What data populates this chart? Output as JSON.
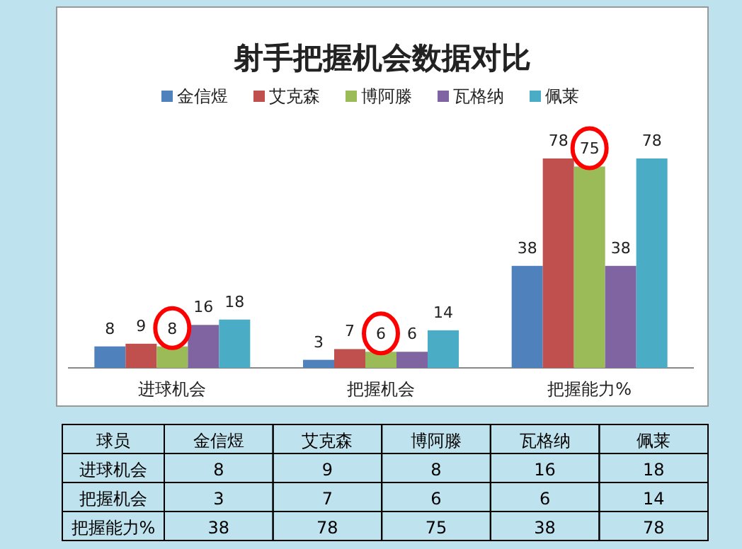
{
  "chart_data": [
    {
      "type": "bar",
      "title": "射手把握机会数据对比",
      "categories": [
        "进球机会",
        "把握机会",
        "把握能力%"
      ],
      "series": [
        {
          "name": "金信煜",
          "color": "#4f81bd",
          "values": [
            8,
            3,
            38
          ]
        },
        {
          "name": "艾克森",
          "color": "#c0504d",
          "values": [
            9,
            7,
            78
          ]
        },
        {
          "name": "博阿滕",
          "color": "#9bbb59",
          "values": [
            8,
            6,
            75
          ]
        },
        {
          "name": "瓦格纳",
          "color": "#8064a2",
          "values": [
            16,
            6,
            38
          ]
        },
        {
          "name": "佩莱",
          "color": "#4bacc6",
          "values": [
            18,
            14,
            78
          ]
        }
      ],
      "data_labels": true,
      "legend": "top"
    },
    {
      "type": "heatmap",
      "annotations": [
        "球员"
      ],
      "categories": [
        "金信煜",
        "艾克森",
        "博阿滕",
        "瓦格纳",
        "佩莱"
      ],
      "y_categories": [
        "进球机会",
        "把握机会",
        "把握能力%"
      ],
      "cells": [
        [
          8,
          9,
          8,
          16,
          18
        ],
        [
          3,
          7,
          6,
          6,
          14
        ],
        [
          38,
          78,
          75,
          38,
          78
        ]
      ],
      "data_labels": true
    }
  ]
}
